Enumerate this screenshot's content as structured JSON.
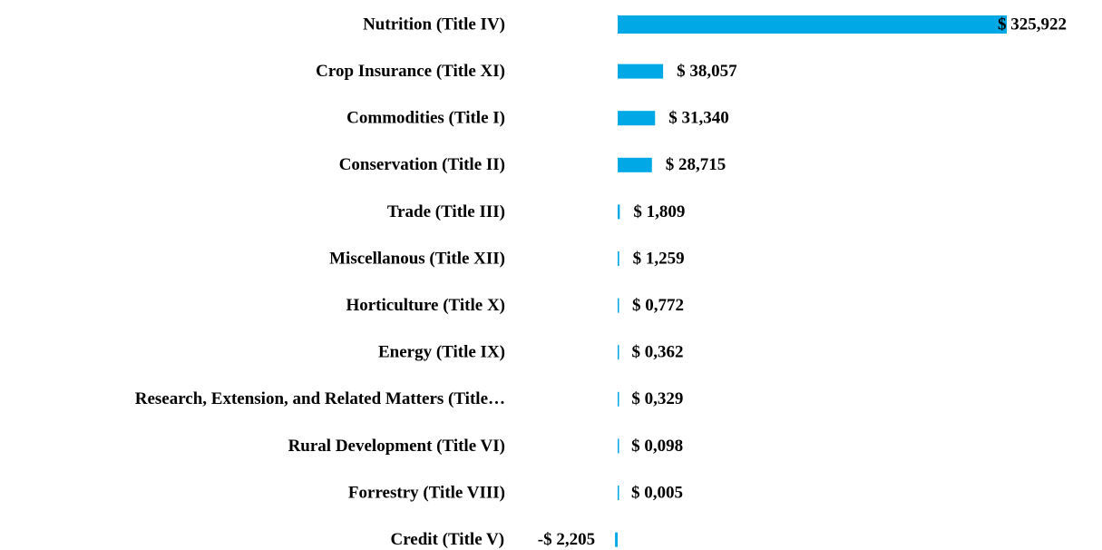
{
  "chart_data": {
    "type": "bar",
    "orientation": "horizontal",
    "color": "#00a9e6",
    "categories": [
      "Nutrition (Title IV)",
      "Crop Insurance (Title XI)",
      "Commodities (Title I)",
      "Conservation (Title II)",
      "Trade (Title III)",
      "Miscellanous (Title XII)",
      "Horticulture (Title X)",
      "Energy (Title IX)",
      "Research, Extension, and Related Matters (Title…",
      "Rural Development (Title VI)",
      "Forrestry (Title VIII)",
      "Credit (Title V)"
    ],
    "values": [
      325.922,
      38.057,
      31.34,
      28.715,
      1.809,
      1.259,
      0.772,
      0.362,
      0.329,
      0.098,
      0.005,
      -2.205
    ],
    "value_labels": [
      "$ 325,922",
      "$ 38,057",
      "$ 31,340",
      "$ 28,715",
      "$ 1,809",
      "$ 1,259",
      "$ 0,772",
      "$ 0,362",
      "$ 0,329",
      "$ 0,098",
      "$ 0,005",
      "-$ 2,205"
    ]
  }
}
